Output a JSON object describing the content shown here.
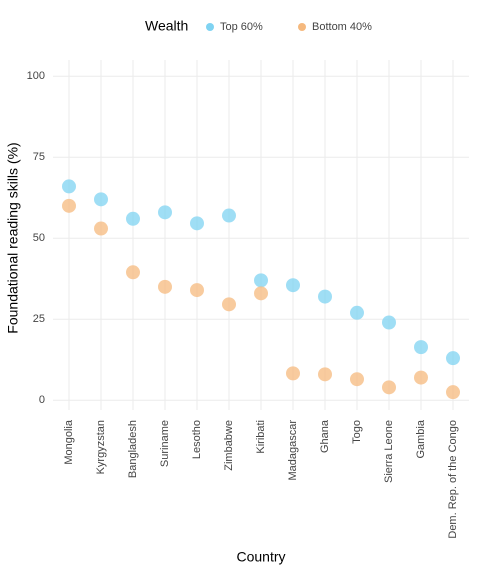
{
  "chart_data": {
    "type": "dot",
    "legend_title": "Wealth",
    "x_label": "Country",
    "y_label": "Foundational reading skills (%)",
    "categories": [
      "Mongolia",
      "Kyrgyzstan",
      "Bangladesh",
      "Suriname",
      "Lesotho",
      "Zimbabwe",
      "Kiribati",
      "Madagascar",
      "Ghana",
      "Togo",
      "Sierra Leone",
      "Gambia",
      "Dem. Rep. of the Congo"
    ],
    "series": [
      {
        "name": "Top 60%",
        "color": "#7fd3f2",
        "values": [
          66,
          62,
          56,
          58,
          54.6,
          57,
          37,
          35.5,
          32,
          27,
          24,
          16.4,
          13
        ]
      },
      {
        "name": "Bottom 40%",
        "color": "#f5b97e",
        "values": [
          60,
          53,
          39.5,
          35,
          34,
          29.6,
          33,
          8.3,
          8,
          6.5,
          4,
          7,
          2.5
        ]
      }
    ],
    "ylim": [
      -3,
      105
    ],
    "yticks": [
      0,
      25,
      50,
      75,
      100
    ],
    "grid": true,
    "legend": "top"
  }
}
